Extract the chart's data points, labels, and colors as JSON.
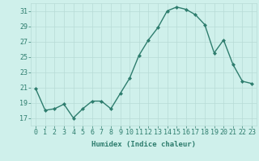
{
  "x": [
    0,
    1,
    2,
    3,
    4,
    5,
    6,
    7,
    8,
    9,
    10,
    11,
    12,
    13,
    14,
    15,
    16,
    17,
    18,
    19,
    20,
    21,
    22,
    23
  ],
  "y": [
    20.8,
    18.0,
    18.2,
    18.8,
    17.0,
    18.2,
    19.2,
    19.2,
    18.2,
    20.2,
    22.2,
    25.2,
    27.2,
    28.8,
    31.0,
    31.5,
    31.2,
    30.5,
    29.2,
    25.5,
    27.2,
    24.0,
    21.8,
    21.5
  ],
  "xlabel": "Humidex (Indice chaleur)",
  "ylim": [
    16,
    32
  ],
  "yticks": [
    17,
    19,
    21,
    23,
    25,
    27,
    29,
    31
  ],
  "xticks": [
    0,
    1,
    2,
    3,
    4,
    5,
    6,
    7,
    8,
    9,
    10,
    11,
    12,
    13,
    14,
    15,
    16,
    17,
    18,
    19,
    20,
    21,
    22,
    23
  ],
  "line_color": "#2e7d6e",
  "marker_color": "#2e7d6e",
  "bg_color": "#cff0eb",
  "grid_color": "#b8dbd6",
  "tick_label_color": "#2e7d6e",
  "axis_label_color": "#2e7d6e",
  "xlabel_fontsize": 6.5,
  "tick_fontsize": 6.0,
  "line_width": 1.0,
  "marker_size": 2.0
}
